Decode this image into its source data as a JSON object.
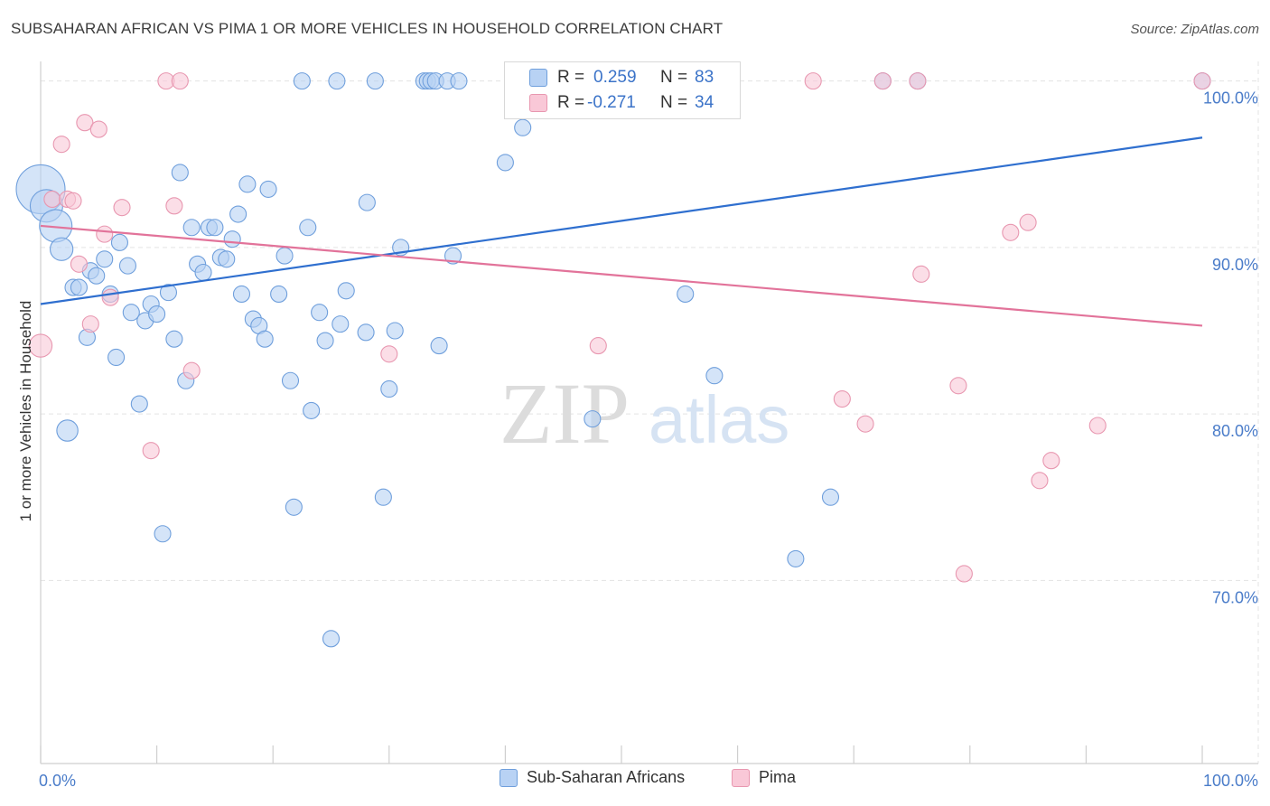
{
  "header": {
    "title": "SUBSAHARAN AFRICAN VS PIMA 1 OR MORE VEHICLES IN HOUSEHOLD CORRELATION CHART",
    "source": "Source: ZipAtlas.com"
  },
  "watermark": {
    "zip": "ZIP",
    "atlas": "atlas"
  },
  "legend_stats": [
    {
      "r_label": "R =",
      "r_value": "0.259",
      "n_label": "N =",
      "n_value": "83"
    },
    {
      "r_label": "R =",
      "r_value": "-0.271",
      "n_label": "N =",
      "n_value": "34"
    }
  ],
  "legend_bottom": [
    {
      "label": "Sub-Saharan Africans"
    },
    {
      "label": "Pima"
    }
  ],
  "colors": {
    "blue_fill": "#b8d2f4",
    "blue_stroke": "#6f9fdc",
    "blue_line": "#2f6fcf",
    "pink_fill": "#f9c8d7",
    "pink_stroke": "#e897b0",
    "pink_line": "#e2739a",
    "tick_text": "#4a7cc9",
    "value_text": "#3b73c8"
  },
  "chart_data": {
    "type": "scatter",
    "title": "SUBSAHARAN AFRICAN VS PIMA 1 OR MORE VEHICLES IN HOUSEHOLD CORRELATION CHART",
    "xlabel": "",
    "ylabel": "1 or more Vehicles in Household",
    "xlim": [
      0,
      100
    ],
    "ylim": [
      59,
      101.5
    ],
    "x_tick_labels": [
      "0.0%",
      "100.0%"
    ],
    "y_ticks": [
      70,
      80,
      90,
      100
    ],
    "y_tick_labels": [
      "70.0%",
      "80.0%",
      "90.0%",
      "100.0%"
    ],
    "grid": true,
    "legend_position": "top-center",
    "series": [
      {
        "name": "Sub-Saharan Africans",
        "trend": {
          "x0": 0,
          "y0": 86.6,
          "x1": 100,
          "y1": 96.6
        },
        "points": [
          [
            0,
            93.5,
            3
          ],
          [
            0.5,
            92.5,
            2
          ],
          [
            1.3,
            91.3,
            2
          ],
          [
            1.8,
            89.9,
            1.4
          ],
          [
            2.3,
            79.0,
            1.3
          ],
          [
            2.8,
            87.6,
            1
          ],
          [
            3.3,
            87.6,
            1
          ],
          [
            4.0,
            84.6,
            1
          ],
          [
            4.3,
            88.6,
            1
          ],
          [
            4.8,
            88.3,
            1
          ],
          [
            5.5,
            89.3,
            1
          ],
          [
            6.0,
            87.2,
            1
          ],
          [
            6.5,
            83.4,
            1
          ],
          [
            6.8,
            90.3,
            1
          ],
          [
            7.5,
            88.9,
            1
          ],
          [
            7.8,
            86.1,
            1
          ],
          [
            8.5,
            80.6,
            1
          ],
          [
            9.0,
            85.6,
            1
          ],
          [
            9.5,
            86.6,
            1
          ],
          [
            10.0,
            86.0,
            1
          ],
          [
            10.5,
            72.8,
            1
          ],
          [
            11.0,
            87.3,
            1
          ],
          [
            11.5,
            84.5,
            1
          ],
          [
            12.0,
            94.5,
            1
          ],
          [
            12.5,
            82.0,
            1
          ],
          [
            13.0,
            91.2,
            1
          ],
          [
            13.5,
            89.0,
            1
          ],
          [
            14.0,
            88.5,
            1
          ],
          [
            14.5,
            91.2,
            1
          ],
          [
            15.0,
            91.2,
            1
          ],
          [
            15.5,
            89.4,
            1
          ],
          [
            16.0,
            89.3,
            1
          ],
          [
            16.5,
            90.5,
            1
          ],
          [
            17.0,
            92.0,
            1
          ],
          [
            17.3,
            87.2,
            1
          ],
          [
            17.8,
            93.8,
            1
          ],
          [
            18.3,
            85.7,
            1
          ],
          [
            18.8,
            85.3,
            1
          ],
          [
            19.3,
            84.5,
            1
          ],
          [
            19.6,
            93.5,
            1
          ],
          [
            20.5,
            87.2,
            1
          ],
          [
            21.0,
            89.5,
            1
          ],
          [
            21.5,
            82.0,
            1
          ],
          [
            21.8,
            74.4,
            1
          ],
          [
            22.5,
            100,
            1
          ],
          [
            23.0,
            91.2,
            1
          ],
          [
            23.3,
            80.2,
            1
          ],
          [
            24.0,
            86.1,
            1
          ],
          [
            24.5,
            84.4,
            1
          ],
          [
            25.0,
            66.5,
            1
          ],
          [
            25.5,
            100,
            1
          ],
          [
            25.8,
            85.4,
            1
          ],
          [
            26.3,
            87.4,
            1
          ],
          [
            28.0,
            84.9,
            1
          ],
          [
            28.1,
            92.7,
            1
          ],
          [
            28.8,
            100,
            1
          ],
          [
            29.5,
            75.0,
            1
          ],
          [
            30.0,
            81.5,
            1
          ],
          [
            30.5,
            85.0,
            1
          ],
          [
            31.0,
            90.0,
            1
          ],
          [
            33.0,
            100,
            1
          ],
          [
            33.3,
            100,
            1
          ],
          [
            33.6,
            100,
            1
          ],
          [
            34.0,
            100,
            1
          ],
          [
            34.3,
            84.1,
            1
          ],
          [
            35.0,
            100,
            1
          ],
          [
            35.5,
            89.5,
            1
          ],
          [
            36.0,
            100,
            1
          ],
          [
            40.0,
            95.1,
            1
          ],
          [
            41.5,
            97.2,
            1
          ],
          [
            47.0,
            100,
            1
          ],
          [
            47.5,
            79.7,
            1
          ],
          [
            52.5,
            100,
            1
          ],
          [
            55.5,
            87.2,
            1
          ],
          [
            57.0,
            100,
            1
          ],
          [
            58.0,
            82.3,
            1
          ],
          [
            59.0,
            100,
            1
          ],
          [
            65.0,
            71.3,
            1
          ],
          [
            68.0,
            75.0,
            1
          ],
          [
            72.5,
            100,
            1
          ],
          [
            75.5,
            100,
            1
          ],
          [
            100,
            100,
            1
          ]
        ]
      },
      {
        "name": "Pima",
        "trend": {
          "x0": 0,
          "y0": 91.3,
          "x1": 100,
          "y1": 85.3
        },
        "points": [
          [
            0,
            84.1,
            1.4
          ],
          [
            1.0,
            92.9,
            1
          ],
          [
            1.8,
            96.2,
            1
          ],
          [
            2.3,
            92.9,
            1
          ],
          [
            2.8,
            92.8,
            1
          ],
          [
            3.3,
            89.0,
            1
          ],
          [
            3.8,
            97.5,
            1
          ],
          [
            4.3,
            85.4,
            1
          ],
          [
            5.0,
            97.1,
            1
          ],
          [
            5.5,
            90.8,
            1
          ],
          [
            6.0,
            87.0,
            1
          ],
          [
            7.0,
            92.4,
            1
          ],
          [
            9.5,
            77.8,
            1
          ],
          [
            10.8,
            100,
            1
          ],
          [
            11.5,
            92.5,
            1
          ],
          [
            12.0,
            100,
            1
          ],
          [
            13.0,
            82.6,
            1
          ],
          [
            30.0,
            83.6,
            1
          ],
          [
            48.0,
            84.1,
            1
          ],
          [
            66.5,
            100,
            1
          ],
          [
            69.0,
            80.9,
            1
          ],
          [
            71.0,
            79.4,
            1
          ],
          [
            72.5,
            100,
            1
          ],
          [
            75.5,
            100,
            1
          ],
          [
            75.8,
            88.4,
            1
          ],
          [
            79.0,
            81.7,
            1
          ],
          [
            83.5,
            90.9,
            1
          ],
          [
            85.0,
            91.5,
            1
          ],
          [
            86.0,
            76.0,
            1
          ],
          [
            87.0,
            77.2,
            1
          ],
          [
            79.5,
            70.4,
            1
          ],
          [
            91.0,
            79.3,
            1
          ],
          [
            100,
            100,
            1
          ]
        ]
      }
    ]
  }
}
